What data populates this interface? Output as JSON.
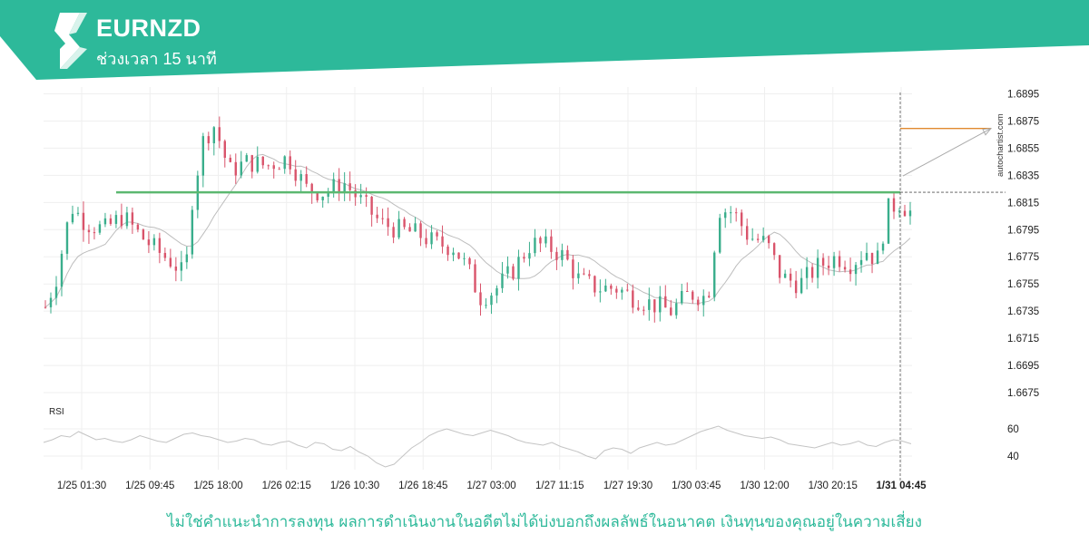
{
  "header": {
    "symbol": "EURNZD",
    "interval": "ช่วงเวลา 15 นาที",
    "color": "#2db99a"
  },
  "chart_data": {
    "type": "candlestick",
    "price_axis": {
      "ticks": [
        "1.6895",
        "1.6875",
        "1.6855",
        "1.6835",
        "1.6815",
        "1.6795",
        "1.6775",
        "1.6755",
        "1.6735",
        "1.6715",
        "1.6695",
        "1.6675"
      ],
      "ylim": [
        1.6665,
        1.69
      ]
    },
    "time_axis": {
      "ticks": [
        "1/25 01:30",
        "1/25 09:45",
        "1/25 18:00",
        "1/26 02:15",
        "1/26 10:30",
        "1/26 18:45",
        "1/27 03:00",
        "1/27 11:15",
        "1/27 19:30",
        "1/30 03:45",
        "1/30 12:00",
        "1/30 20:15",
        "1/31 04:45"
      ],
      "highlighted_tick": "1/31 04:45"
    },
    "close_series": [
      {
        "t": 0,
        "v": 1.6738
      },
      {
        "t": 6,
        "v": 1.676
      },
      {
        "t": 14,
        "v": 1.6812
      },
      {
        "t": 22,
        "v": 1.68
      },
      {
        "t": 32,
        "v": 1.6795
      },
      {
        "t": 42,
        "v": 1.6805
      },
      {
        "t": 52,
        "v": 1.679
      },
      {
        "t": 62,
        "v": 1.6778
      },
      {
        "t": 70,
        "v": 1.677
      },
      {
        "t": 76,
        "v": 1.676
      },
      {
        "t": 80,
        "v": 1.682
      },
      {
        "t": 86,
        "v": 1.6862
      },
      {
        "t": 92,
        "v": 1.6872
      },
      {
        "t": 100,
        "v": 1.6838
      },
      {
        "t": 110,
        "v": 1.6845
      },
      {
        "t": 120,
        "v": 1.6842
      },
      {
        "t": 132,
        "v": 1.6848
      },
      {
        "t": 142,
        "v": 1.6825
      },
      {
        "t": 152,
        "v": 1.6822
      },
      {
        "t": 162,
        "v": 1.683
      },
      {
        "t": 172,
        "v": 1.6815
      },
      {
        "t": 182,
        "v": 1.68
      },
      {
        "t": 192,
        "v": 1.6795
      },
      {
        "t": 202,
        "v": 1.6792
      },
      {
        "t": 212,
        "v": 1.6785
      },
      {
        "t": 222,
        "v": 1.6782
      },
      {
        "t": 230,
        "v": 1.6765
      },
      {
        "t": 236,
        "v": 1.6745
      },
      {
        "t": 244,
        "v": 1.675
      },
      {
        "t": 254,
        "v": 1.6765
      },
      {
        "t": 264,
        "v": 1.6785
      },
      {
        "t": 274,
        "v": 1.6782
      },
      {
        "t": 282,
        "v": 1.6775
      },
      {
        "t": 290,
        "v": 1.6758
      },
      {
        "t": 300,
        "v": 1.6752
      },
      {
        "t": 310,
        "v": 1.6752
      },
      {
        "t": 320,
        "v": 1.6745
      },
      {
        "t": 330,
        "v": 1.674
      },
      {
        "t": 340,
        "v": 1.6735
      },
      {
        "t": 350,
        "v": 1.6748
      },
      {
        "t": 360,
        "v": 1.6745
      },
      {
        "t": 366,
        "v": 1.681
      },
      {
        "t": 374,
        "v": 1.6808
      },
      {
        "t": 382,
        "v": 1.679
      },
      {
        "t": 392,
        "v": 1.6785
      },
      {
        "t": 400,
        "v": 1.676
      },
      {
        "t": 410,
        "v": 1.6755
      },
      {
        "t": 420,
        "v": 1.6768
      },
      {
        "t": 430,
        "v": 1.6775
      },
      {
        "t": 438,
        "v": 1.677
      },
      {
        "t": 446,
        "v": 1.678
      },
      {
        "t": 452,
        "v": 1.6772
      },
      {
        "t": 458,
        "v": 1.681
      },
      {
        "t": 464,
        "v": 1.6815
      },
      {
        "t": 470,
        "v": 1.6808
      }
    ],
    "horizontal_level": 1.68225,
    "projection_level": 1.68695,
    "last_price": 1.68225,
    "rsi": {
      "label": "RSI",
      "ticks": [
        "60",
        "40"
      ],
      "ylim": [
        30,
        70
      ],
      "values": [
        50,
        52,
        55,
        54,
        58,
        55,
        52,
        53,
        51,
        50,
        52,
        55,
        53,
        51,
        50,
        53,
        56,
        57,
        55,
        54,
        52,
        50,
        51,
        53,
        52,
        49,
        48,
        50,
        51,
        48,
        46,
        50,
        49,
        45,
        44,
        47,
        43,
        40,
        35,
        32,
        34,
        40,
        46,
        50,
        55,
        58,
        60,
        58,
        56,
        55,
        57,
        59,
        57,
        55,
        52,
        50,
        49,
        48,
        50,
        47,
        45,
        43,
        40,
        38,
        44,
        46,
        45,
        42,
        46,
        48,
        50,
        48,
        49,
        52,
        55,
        58,
        60,
        62,
        59,
        57,
        55,
        54,
        53,
        54,
        52,
        49,
        48,
        47,
        46,
        48,
        50,
        48,
        49,
        51,
        48,
        47,
        50,
        52,
        51,
        49
      ]
    },
    "watermark": "autochartist.com"
  },
  "footer": {
    "disclaimer": "ไม่ใช่คำแนะนำการลงทุน ผลการดำเนินงานในอดีตไม่ได้บ่งบอกถึงผลลัพธ์ในอนาคต เงินทุนของคุณอยู่ในความเสี่ยง"
  }
}
